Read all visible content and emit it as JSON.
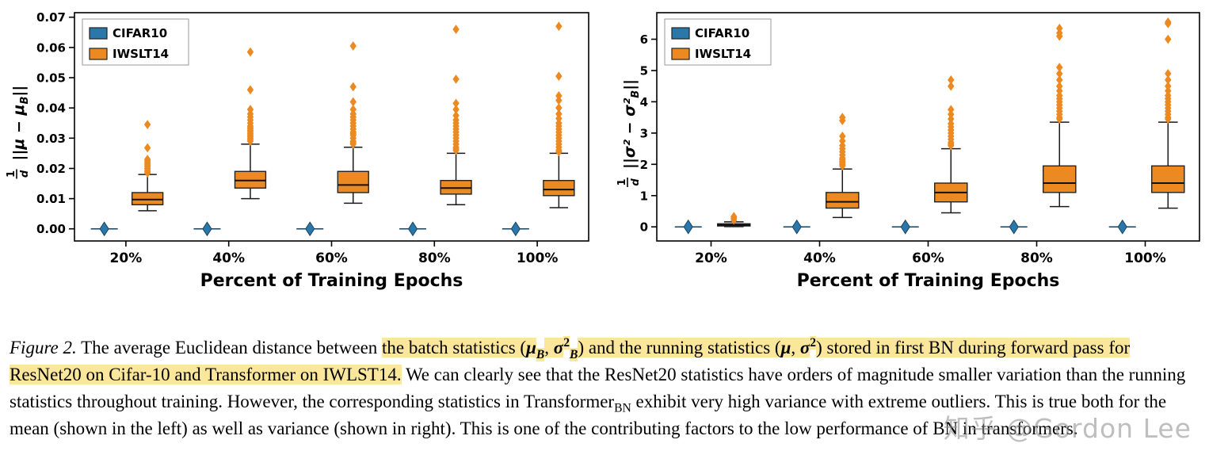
{
  "colors": {
    "cifar_blue": "#2a77a9",
    "iwslt_orange": "#ec8a21",
    "highlight_yellow": "#fbe79c",
    "box_median": "#111111"
  },
  "watermark": {
    "text": "知乎 @Gordon Lee"
  },
  "chart_data": [
    {
      "type": "box",
      "title": "",
      "xlabel": "Percent of Training Epochs",
      "ylabel": "(1/d)||μ − μ_B||",
      "ylabel_parts": {
        "num": "1",
        "den": "d",
        "pre": "||μ − μ",
        "sub": "B",
        "post": "||"
      },
      "categories": [
        "20%",
        "40%",
        "60%",
        "80%",
        "100%"
      ],
      "ylim": [
        -0.004,
        0.0715
      ],
      "yticks": [
        0,
        0.01,
        0.02,
        0.03,
        0.04,
        0.05,
        0.06,
        0.07
      ],
      "ytick_labels": [
        "0.00",
        "0.01",
        "0.02",
        "0.03",
        "0.04",
        "0.05",
        "0.06",
        "0.07"
      ],
      "legend_position": "upper-left",
      "grid": false,
      "series": [
        {
          "name": "CIFAR10",
          "color": "#2a77a9",
          "flat": true,
          "boxes": [
            {
              "med": 0
            },
            {
              "med": 0
            },
            {
              "med": 0
            },
            {
              "med": 0
            },
            {
              "med": 0
            }
          ]
        },
        {
          "name": "IWSLT14",
          "color": "#ec8a21",
          "boxes": [
            {
              "whislo": 0.006,
              "q1": 0.008,
              "med": 0.0097,
              "q3": 0.012,
              "whishi": 0.018,
              "outliers": [
                0.0185,
                0.019,
                0.0195,
                0.02,
                0.0205,
                0.021,
                0.0215,
                0.022,
                0.0225,
                0.023,
                0.0268,
                0.0345
              ]
            },
            {
              "whislo": 0.01,
              "q1": 0.0135,
              "med": 0.016,
              "q3": 0.019,
              "whishi": 0.028,
              "outliers": [
                0.029,
                0.0295,
                0.03,
                0.0305,
                0.031,
                0.0315,
                0.032,
                0.0325,
                0.033,
                0.0335,
                0.034,
                0.035,
                0.036,
                0.037,
                0.038,
                0.0395,
                0.046,
                0.0585
              ]
            },
            {
              "whislo": 0.0085,
              "q1": 0.012,
              "med": 0.0145,
              "q3": 0.019,
              "whishi": 0.027,
              "outliers": [
                0.028,
                0.0285,
                0.029,
                0.03,
                0.031,
                0.0315,
                0.032,
                0.033,
                0.034,
                0.035,
                0.036,
                0.037,
                0.038,
                0.0395,
                0.042,
                0.047,
                0.0605
              ]
            },
            {
              "whislo": 0.008,
              "q1": 0.0115,
              "med": 0.0135,
              "q3": 0.016,
              "whishi": 0.025,
              "outliers": [
                0.026,
                0.0265,
                0.027,
                0.028,
                0.029,
                0.03,
                0.031,
                0.032,
                0.033,
                0.034,
                0.035,
                0.036,
                0.0375,
                0.0395,
                0.0415,
                0.0495,
                0.066
              ]
            },
            {
              "whislo": 0.007,
              "q1": 0.011,
              "med": 0.013,
              "q3": 0.016,
              "whishi": 0.025,
              "outliers": [
                0.0255,
                0.026,
                0.027,
                0.028,
                0.029,
                0.03,
                0.031,
                0.032,
                0.033,
                0.034,
                0.035,
                0.0365,
                0.038,
                0.04,
                0.0425,
                0.044,
                0.0505,
                0.067
              ]
            }
          ]
        }
      ]
    },
    {
      "type": "box",
      "title": "",
      "xlabel": "Percent of Training Epochs",
      "ylabel": "(1/d)||σ² − σ²_B||",
      "ylabel_parts": {
        "num": "1",
        "den": "d",
        "pre": "||σ² − σ²",
        "sub": "B",
        "post": "||"
      },
      "categories": [
        "20%",
        "40%",
        "60%",
        "80%",
        "100%"
      ],
      "ylim": [
        -0.45,
        6.85
      ],
      "yticks": [
        0,
        1,
        2,
        3,
        4,
        5,
        6
      ],
      "ytick_labels": [
        "0",
        "1",
        "2",
        "3",
        "4",
        "5",
        "6"
      ],
      "legend_position": "upper-left",
      "grid": false,
      "series": [
        {
          "name": "CIFAR10",
          "color": "#2a77a9",
          "flat": true,
          "boxes": [
            {
              "med": 0
            },
            {
              "med": 0
            },
            {
              "med": 0
            },
            {
              "med": 0
            },
            {
              "med": 0
            }
          ]
        },
        {
          "name": "IWSLT14",
          "color": "#ec8a21",
          "boxes": [
            {
              "whislo": 0.01,
              "q1": 0.03,
              "med": 0.06,
              "q3": 0.1,
              "whishi": 0.16,
              "outliers": [
                0.22,
                0.28,
                0.33
              ]
            },
            {
              "whislo": 0.3,
              "q1": 0.6,
              "med": 0.8,
              "q3": 1.1,
              "whishi": 1.85,
              "outliers": [
                1.95,
                2.0,
                2.05,
                2.1,
                2.15,
                2.2,
                2.3,
                2.4,
                2.5,
                2.6,
                2.75,
                2.9,
                3.4,
                3.5
              ]
            },
            {
              "whislo": 0.45,
              "q1": 0.8,
              "med": 1.1,
              "q3": 1.4,
              "whishi": 2.5,
              "outliers": [
                2.6,
                2.65,
                2.7,
                2.8,
                2.9,
                3.0,
                3.1,
                3.2,
                3.3,
                3.45,
                3.6,
                3.75,
                4.5,
                4.7
              ]
            },
            {
              "whislo": 0.65,
              "q1": 1.1,
              "med": 1.4,
              "q3": 1.95,
              "whishi": 3.35,
              "outliers": [
                3.45,
                3.5,
                3.6,
                3.7,
                3.8,
                3.9,
                4.0,
                4.1,
                4.2,
                4.35,
                4.5,
                4.7,
                4.9,
                5.1,
                6.1,
                6.2,
                6.35
              ]
            },
            {
              "whislo": 0.6,
              "q1": 1.1,
              "med": 1.4,
              "q3": 1.95,
              "whishi": 3.35,
              "outliers": [
                3.45,
                3.5,
                3.6,
                3.7,
                3.8,
                3.9,
                4.0,
                4.1,
                4.2,
                4.35,
                4.5,
                4.7,
                4.9,
                6.0,
                6.5,
                6.55
              ]
            }
          ]
        }
      ]
    }
  ],
  "caption": {
    "segments": [
      {
        "t": "Figure 2.",
        "i": 1
      },
      {
        "t": " The average Euclidean distance between "
      },
      {
        "t": "the batch statistics (",
        "h": 1
      },
      {
        "t": "μ",
        "h": 1,
        "i": 1,
        "b": 1
      },
      {
        "t": "B",
        "h": 1,
        "i": 1,
        "b": 1,
        "sub": 1
      },
      {
        "t": ", ",
        "h": 1
      },
      {
        "t": "σ",
        "h": 1,
        "i": 1,
        "b": 1
      },
      {
        "t": "2",
        "h": 1,
        "b": 1,
        "sup": 1
      },
      {
        "t": "B",
        "h": 1,
        "i": 1,
        "b": 1,
        "sub": 1
      },
      {
        "t": ") and the running statistics (",
        "h": 1
      },
      {
        "t": "μ",
        "h": 1,
        "i": 1,
        "b": 1
      },
      {
        "t": ", ",
        "h": 1
      },
      {
        "t": "σ",
        "h": 1,
        "i": 1,
        "b": 1
      },
      {
        "t": "2",
        "h": 1,
        "b": 1,
        "sup": 1
      },
      {
        "t": ") stored in first BN during forward pass for ResNet20 on Cifar-10 and Transformer on IWLST14.",
        "h": 1
      },
      {
        "t": " We can clearly see that the ResNet20 statistics have orders of magnitude smaller variation than the running statistics throughout training. However, the corresponding statistics in Transformer"
      },
      {
        "t": "BN",
        "sub": 1
      },
      {
        "t": " exhibit very high variance with extreme outliers. This is true both for the mean (shown in the left) as well as variance (shown in right). This is one of the contributing factors to the low performance of BN in transformers."
      }
    ]
  }
}
